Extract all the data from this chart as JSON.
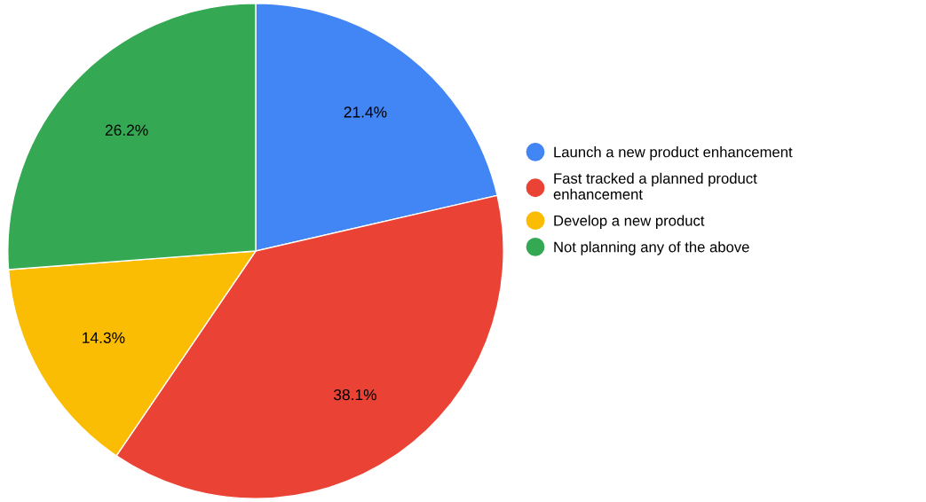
{
  "chart_data": {
    "type": "pie",
    "categories": [
      "Launch a new product enhancement",
      "Fast tracked a planned product\nenhancement",
      "Develop a new product",
      "Not planning any of the above"
    ],
    "values": [
      21.4,
      38.1,
      14.3,
      26.2
    ],
    "colors": [
      "#4285f4",
      "#ea4335",
      "#fbbc04",
      "#34a853"
    ],
    "value_labels": [
      "21.4%",
      "38.1%",
      "14.3%",
      "26.2%"
    ],
    "legend": "right"
  }
}
